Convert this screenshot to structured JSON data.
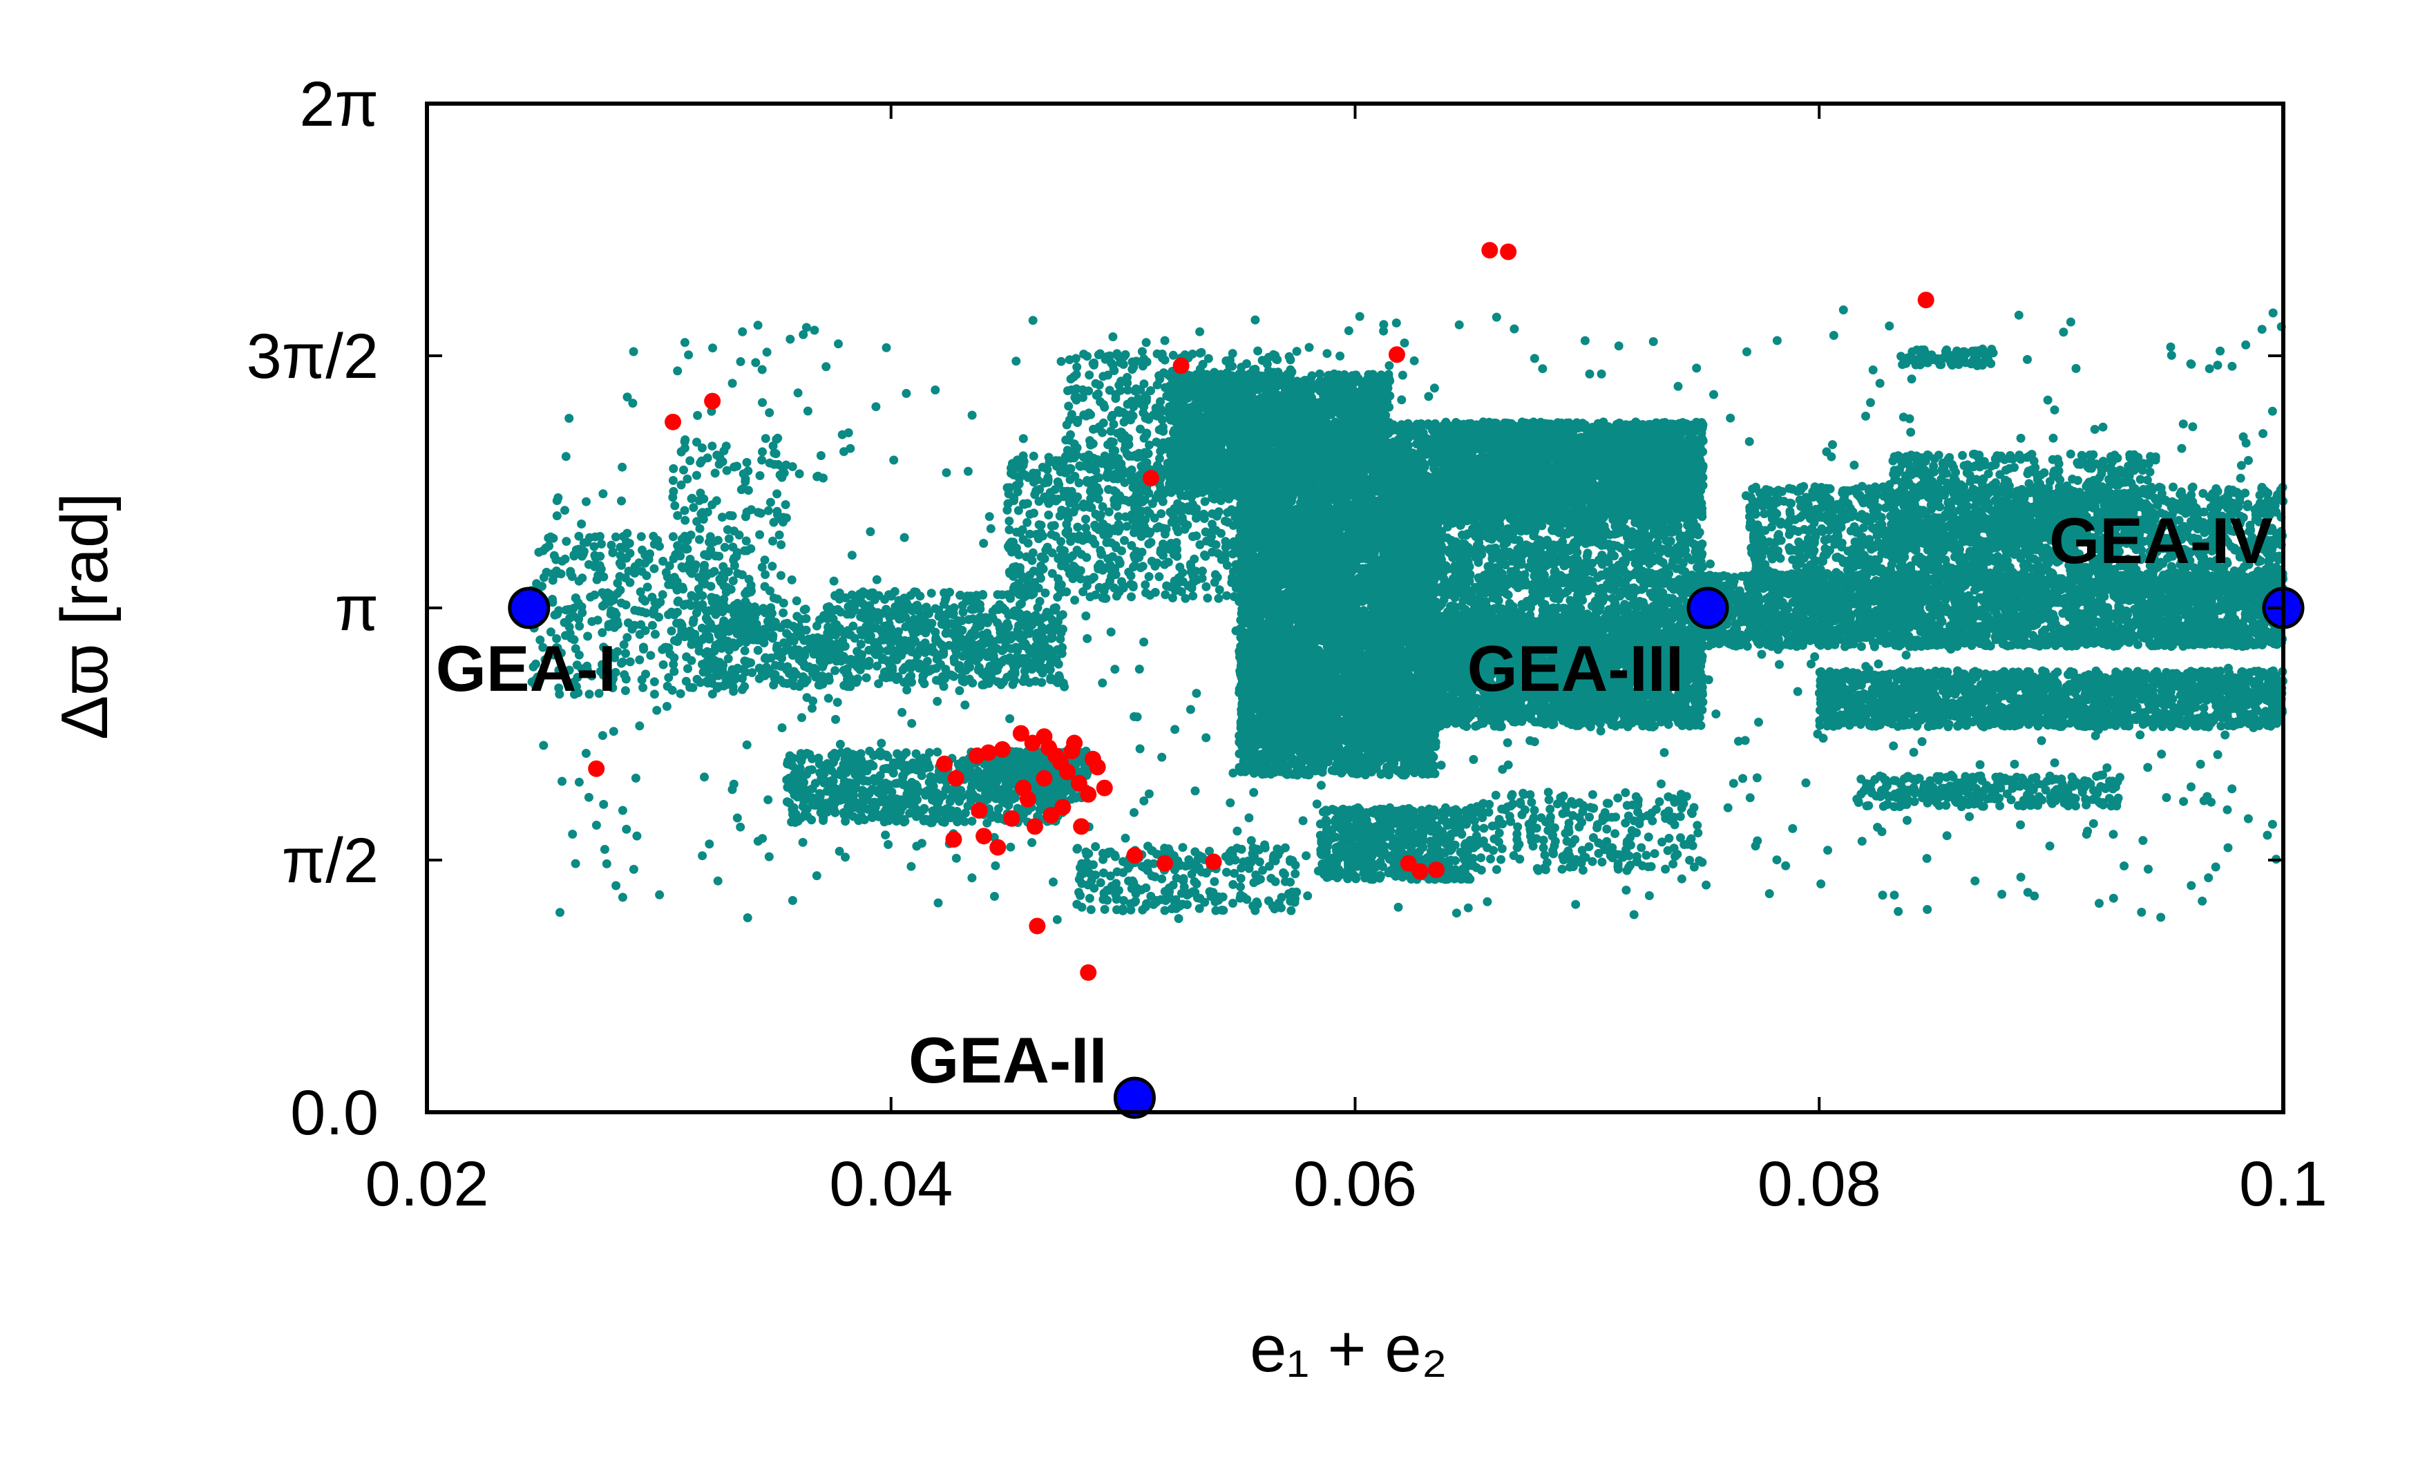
{
  "chart_data": {
    "type": "scatter",
    "xlabel": "e₁ + e₂",
    "ylabel": "Δϖ [rad]",
    "xlim": [
      0.02,
      0.1
    ],
    "ylim": [
      0,
      6.2832
    ],
    "x_ticks": [
      {
        "value": 0.02,
        "label": "0.02"
      },
      {
        "value": 0.04,
        "label": "0.04"
      },
      {
        "value": 0.06,
        "label": "0.06"
      },
      {
        "value": 0.08,
        "label": "0.08"
      },
      {
        "value": 0.1,
        "label": "0.1"
      }
    ],
    "y_ticks": [
      {
        "value": 0,
        "label": "0.0"
      },
      {
        "value": 1.5708,
        "label": "π/2"
      },
      {
        "value": 3.1416,
        "label": "π"
      },
      {
        "value": 4.7124,
        "label": "3π/2"
      },
      {
        "value": 6.2832,
        "label": "2π"
      }
    ],
    "colors": {
      "cloud": "#0a8a84",
      "red": "#ff0000",
      "gea": "#0000ff"
    },
    "cloud_regions": [
      {
        "x": [
          0.0245,
          0.034
        ],
        "y": [
          2.6,
          3.6
        ],
        "n": 380
      },
      {
        "x": [
          0.0305,
          0.0355
        ],
        "y": [
          2.9,
          4.2
        ],
        "n": 180
      },
      {
        "x": [
          0.032,
          0.0475
        ],
        "y": [
          2.65,
          3.15
        ],
        "n": 650
      },
      {
        "x": [
          0.0375,
          0.0475
        ],
        "y": [
          2.75,
          3.25
        ],
        "n": 250
      },
      {
        "x": [
          0.0355,
          0.0475
        ],
        "y": [
          1.8,
          2.25
        ],
        "n": 700
      },
      {
        "x": [
          0.044,
          0.0485
        ],
        "y": [
          1.95,
          2.25
        ],
        "n": 300
      },
      {
        "x": [
          0.048,
          0.0575
        ],
        "y": [
          1.25,
          1.65
        ],
        "n": 260
      },
      {
        "x": [
          0.045,
          0.057
        ],
        "y": [
          3.2,
          4.1
        ],
        "n": 700
      },
      {
        "x": [
          0.0475,
          0.0575
        ],
        "y": [
          3.8,
          4.75
        ],
        "n": 500
      },
      {
        "x": [
          0.052,
          0.0615
        ],
        "y": [
          3.9,
          4.6
        ],
        "n": 2000
      },
      {
        "x": [
          0.055,
          0.0635
        ],
        "y": [
          2.1,
          3.9
        ],
        "n": 3800
      },
      {
        "x": [
          0.055,
          0.0635
        ],
        "y": [
          2.3,
          4.3
        ],
        "n": 2200
      },
      {
        "x": [
          0.0615,
          0.075
        ],
        "y": [
          2.4,
          4.3
        ],
        "n": 3800
      },
      {
        "x": [
          0.0635,
          0.075
        ],
        "y": [
          3.7,
          4.3
        ],
        "n": 1800
      },
      {
        "x": [
          0.0635,
          0.075
        ],
        "y": [
          2.45,
          3.1
        ],
        "n": 1400
      },
      {
        "x": [
          0.0585,
          0.065
        ],
        "y": [
          1.45,
          1.9
        ],
        "n": 550
      },
      {
        "x": [
          0.065,
          0.075
        ],
        "y": [
          1.5,
          2.0
        ],
        "n": 240
      },
      {
        "x": [
          0.075,
          0.1
        ],
        "y": [
          2.9,
          3.35
        ],
        "n": 2600
      },
      {
        "x": [
          0.08,
          0.1
        ],
        "y": [
          2.4,
          2.75
        ],
        "n": 1600
      },
      {
        "x": [
          0.077,
          0.1
        ],
        "y": [
          3.25,
          3.9
        ],
        "n": 1800
      },
      {
        "x": [
          0.083,
          0.0945
        ],
        "y": [
          3.5,
          4.1
        ],
        "n": 650
      },
      {
        "x": [
          0.0815,
          0.093
        ],
        "y": [
          1.9,
          2.1
        ],
        "n": 280
      },
      {
        "x": [
          0.0835,
          0.0875
        ],
        "y": [
          4.65,
          4.75
        ],
        "n": 70
      },
      {
        "x": [
          0.025,
          0.1
        ],
        "y": [
          1.2,
          5.0
        ],
        "n": 700
      }
    ],
    "red_points": [
      [
        0.0273,
        2.14
      ],
      [
        0.0306,
        4.3
      ],
      [
        0.0323,
        4.43
      ],
      [
        0.0525,
        4.65
      ],
      [
        0.0512,
        3.95
      ],
      [
        0.0618,
        4.72
      ],
      [
        0.0658,
        5.37
      ],
      [
        0.0666,
        5.36
      ],
      [
        0.0846,
        5.06
      ],
      [
        0.0423,
        2.17
      ],
      [
        0.0428,
        2.08
      ],
      [
        0.0437,
        2.22
      ],
      [
        0.0442,
        2.24
      ],
      [
        0.0448,
        2.26
      ],
      [
        0.0456,
        2.36
      ],
      [
        0.0461,
        2.3
      ],
      [
        0.0466,
        2.34
      ],
      [
        0.0468,
        2.27
      ],
      [
        0.0471,
        2.22
      ],
      [
        0.0473,
        2.18
      ],
      [
        0.0476,
        2.12
      ],
      [
        0.0466,
        2.08
      ],
      [
        0.0478,
        2.25
      ],
      [
        0.0481,
        2.05
      ],
      [
        0.0485,
        1.98
      ],
      [
        0.0489,
        2.15
      ],
      [
        0.0492,
        2.02
      ],
      [
        0.0459,
        1.95
      ],
      [
        0.0469,
        1.85
      ],
      [
        0.0474,
        1.9
      ],
      [
        0.0462,
        1.78
      ],
      [
        0.0452,
        1.83
      ],
      [
        0.0438,
        1.88
      ],
      [
        0.0427,
        1.7
      ],
      [
        0.044,
        1.72
      ],
      [
        0.0482,
        1.78
      ],
      [
        0.0463,
        1.16
      ],
      [
        0.0485,
        0.87
      ],
      [
        0.0505,
        1.6
      ],
      [
        0.0518,
        1.55
      ],
      [
        0.0539,
        1.56
      ],
      [
        0.0623,
        1.55
      ],
      [
        0.0628,
        1.5
      ],
      [
        0.0635,
        1.51
      ],
      [
        0.0479,
        2.3
      ],
      [
        0.0487,
        2.2
      ],
      [
        0.0457,
        2.02
      ],
      [
        0.0446,
        1.65
      ]
    ],
    "gea_points": [
      {
        "label": "GEA-I",
        "x": 0.0244,
        "y": 3.1416
      },
      {
        "label": "GEA-II",
        "x": 0.0505,
        "y": 0.09
      },
      {
        "label": "GEA-III",
        "x": 0.0752,
        "y": 3.1416
      },
      {
        "label": "GEA-IV",
        "x": 0.1,
        "y": 3.1416
      }
    ]
  }
}
